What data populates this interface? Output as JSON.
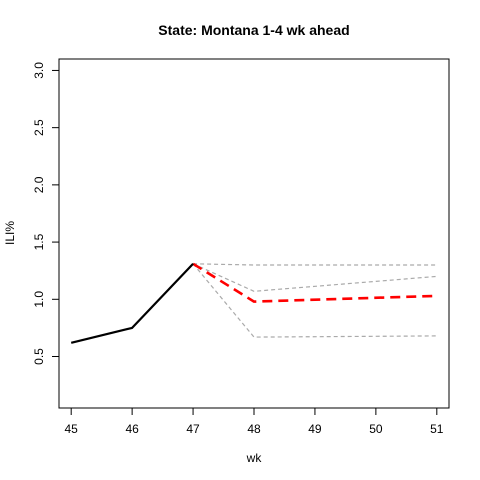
{
  "chart_data": {
    "type": "line",
    "title": "State: Montana 1-4 wk ahead",
    "xlabel": "wk",
    "ylabel": "ILI%",
    "xlim": [
      44.8,
      51.2
    ],
    "ylim": [
      0.05,
      3.1
    ],
    "x_ticks": [
      45,
      46,
      47,
      48,
      49,
      50,
      51
    ],
    "y_ticks": [
      0.5,
      1.0,
      1.5,
      2.0,
      2.5,
      3.0
    ],
    "x_tick_labels": [
      "45",
      "46",
      "47",
      "48",
      "49",
      "50",
      "51"
    ],
    "y_tick_labels": [
      "0.5",
      "1.0",
      "1.5",
      "2.0",
      "2.5",
      "3.0"
    ],
    "grid": false,
    "legend": "none",
    "series": [
      {
        "x": [
          45,
          46,
          47
        ],
        "y": [
          0.62,
          0.75,
          1.31
        ],
        "color": "#000000",
        "style": "solid"
      },
      {
        "x": [
          47,
          48,
          51
        ],
        "y": [
          1.31,
          0.98,
          1.03
        ],
        "color": "#ff0000",
        "style": "dashed"
      },
      {
        "x": [
          47,
          48,
          51
        ],
        "y": [
          1.31,
          1.3,
          1.3
        ],
        "color": "#aaaaaa",
        "style": "dashed"
      },
      {
        "x": [
          47,
          48,
          51
        ],
        "y": [
          1.31,
          1.07,
          1.2
        ],
        "color": "#aaaaaa",
        "style": "dashed"
      },
      {
        "x": [
          47,
          48,
          51
        ],
        "y": [
          1.31,
          0.67,
          0.68
        ],
        "color": "#aaaaaa",
        "style": "dashed"
      }
    ]
  }
}
